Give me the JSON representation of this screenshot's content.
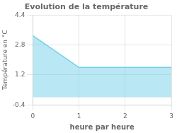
{
  "chart_data": {
    "type": "area",
    "title": "Evolution de la température",
    "x_label": "heure par heure",
    "y_label": "Température en °C",
    "x": [
      0,
      1,
      3
    ],
    "series": [
      {
        "color": "#74cfe8",
        "values": [
          3.3,
          1.6,
          1.6
        ]
      }
    ],
    "baseline": 0,
    "xlim": [
      0,
      3
    ],
    "ylim": [
      -0.4,
      4.4
    ],
    "xticks": [
      0,
      1,
      2,
      3
    ],
    "yticks": [
      -0.4,
      1.2,
      2.8,
      4.4
    ],
    "grid": true
  }
}
